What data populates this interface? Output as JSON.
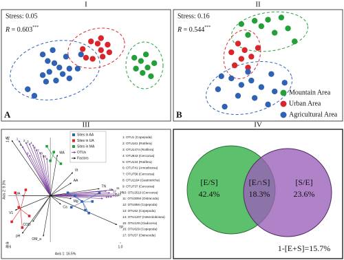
{
  "chart_data": [
    {
      "type": "scatter",
      "title": "I",
      "stress": "Stress: 0.05",
      "r_label": "R",
      "r_value": " = 0.603",
      "r_sig": "***",
      "panel_label": "A",
      "xlim": [
        0,
        100
      ],
      "ylim": [
        0,
        100
      ],
      "series": [
        {
          "color": "#2f62b3",
          "x": [
            24,
            30,
            38,
            40,
            31,
            34,
            36,
            28,
            24,
            26,
            32,
            40,
            45,
            47,
            15,
            19,
            27
          ],
          "y": [
            60,
            64,
            58,
            47,
            52,
            48,
            42,
            44,
            41,
            35,
            36,
            38,
            47,
            60,
            28,
            22,
            54
          ]
        },
        {
          "color": "#d9262b",
          "x": [
            48,
            53,
            57,
            59,
            59,
            60,
            64,
            54,
            50,
            63
          ],
          "y": [
            65,
            72,
            70,
            75,
            64,
            58,
            62,
            56,
            57,
            69
          ]
        },
        {
          "color": "#23a03a",
          "x": [
            79,
            83,
            86,
            87,
            80,
            91,
            89,
            84
          ],
          "y": [
            57,
            54,
            60,
            48,
            47,
            52,
            40,
            43
          ]
        }
      ]
    },
    {
      "type": "scatter",
      "title": "II",
      "stress": "Stress: 0.16",
      "r_label": "R",
      "r_value": " = 0.544",
      "r_sig": "***",
      "panel_label": "B",
      "xlim": [
        0,
        100
      ],
      "ylim": [
        0,
        100
      ],
      "series": [
        {
          "name": "Mountain Area",
          "color": "#23a03a",
          "x": [
            40,
            48,
            56,
            64,
            44,
            60,
            68,
            52,
            72
          ],
          "y": [
            88,
            91,
            92,
            94,
            78,
            80,
            84,
            86,
            72
          ]
        },
        {
          "name": "Urban Area",
          "color": "#d9262b",
          "x": [
            38,
            34,
            42,
            40,
            46,
            36,
            44,
            50
          ],
          "y": [
            70,
            62,
            64,
            56,
            58,
            50,
            48,
            66
          ]
        },
        {
          "name": "Agricultural Area",
          "color": "#2f62b3",
          "x": [
            28,
            34,
            40,
            46,
            52,
            58,
            38,
            48,
            26,
            60,
            66,
            44,
            30,
            56
          ],
          "y": [
            40,
            38,
            32,
            36,
            30,
            42,
            22,
            20,
            28,
            26,
            34,
            44,
            12,
            14
          ]
        }
      ]
    },
    {
      "type": "biplot",
      "title": "III",
      "xlabel": "Axis 1: 16.5%",
      "ylabel": "Axis 2: 9.3%",
      "xlim": [
        -0.6,
        1.0
      ],
      "ylim": [
        -0.8,
        1.0
      ],
      "xticks": [
        -0.6,
        {
          "value": 1.0,
          "label": "1.0"
        }
      ],
      "yticks": [
        -0.8,
        {
          "value": 1.0,
          "label": "1.0"
        }
      ],
      "series": [
        {
          "name": "Sites in AA",
          "color": "#2f62b3",
          "x": [
            0.35,
            0.45,
            0.5,
            0.3,
            0.6,
            0.25,
            0.7,
            0.55
          ],
          "y": [
            0.0,
            -0.1,
            -0.25,
            -0.2,
            -0.1,
            0.05,
            0.05,
            -0.3
          ]
        },
        {
          "name": "Sites in UA",
          "color": "#d9262b",
          "x": [
            -0.5,
            -0.45,
            -0.35,
            -0.3,
            -0.55,
            -0.4
          ],
          "y": [
            0.05,
            -0.2,
            0.1,
            -0.35,
            -0.45,
            -0.55
          ]
        },
        {
          "name": "Sites in MA",
          "color": "#23a03a",
          "x": [
            0.05,
            0.15,
            -0.05,
            0.0
          ],
          "y": [
            0.75,
            0.55,
            0.85,
            0.6
          ]
        }
      ],
      "otus": {
        "name": "OTUs",
        "color": "#7b3f9e",
        "labels": [
          "1",
          "2",
          "3",
          "4",
          "5",
          "6",
          "7",
          "8",
          "9",
          "10",
          "11",
          "12",
          "13",
          "14",
          "15",
          "16",
          "17"
        ],
        "x": [
          -0.45,
          -0.35,
          -0.3,
          -0.25,
          -0.4,
          -0.2,
          -0.15,
          -0.1,
          -0.3,
          -0.05,
          0.9,
          0.85,
          0.88,
          0.92,
          0.8,
          0.95,
          0.75
        ],
        "y": [
          0.95,
          0.92,
          0.9,
          0.88,
          0.85,
          0.8,
          0.75,
          0.7,
          0.7,
          0.65,
          0.1,
          0.05,
          -0.02,
          0.0,
          0.08,
          0.03,
          -0.05
        ]
      },
      "factors": {
        "name": "Factors",
        "color": "#111111",
        "labels": [
          "V2",
          "MA",
          "Vt",
          "AA",
          "TN",
          "Mg",
          "Ca",
          "TP",
          "UA",
          "V1",
          "COD",
          "pH",
          "OM_a"
        ],
        "x": [
          -0.55,
          0.1,
          0.32,
          0.3,
          0.7,
          0.3,
          0.15,
          0.95,
          -0.4,
          -0.5,
          -0.25,
          -0.4,
          -0.1
        ],
        "y": [
          0.95,
          0.7,
          0.4,
          0.22,
          0.12,
          -0.05,
          -0.15,
          -0.5,
          0.0,
          -0.25,
          -0.45,
          -0.65,
          -0.7
        ]
      },
      "otu_list": [
        "1: OTU1 (Copepoda)",
        "2: OTU161 (Rotifera)",
        "3: OTU1474 (Rotifera)",
        "4: OTU843 (Cercozoa)",
        "5: OTU134 (Rotifera)",
        "6: OTU741 (Amoebozoa)",
        "7: OTU758 (Cercozoa)",
        "8: OTU1164 (Gastrotricha)",
        "9: OTU737 (Cercozoa)",
        "10: OTU2519 (Cercozoa)",
        "11: OTU3094 (Ostracoda)",
        "12: OTU856 (Copepoda)",
        "13: OTU62 (Copepoda)",
        "14: OTU1207 (Heterolobosea)",
        "15: OTU129 (Cladocera)",
        "16: OTU629 (Copepoda)",
        "17: OTU57 (Ostracoda)"
      ]
    },
    {
      "type": "venn",
      "title": "IV",
      "regions": {
        "names": [
          "[E/S]",
          "[E∩S]",
          "[S/E]"
        ],
        "values": [
          42.4,
          18.3,
          23.6
        ],
        "value_labels": [
          "42.4%",
          "18.3%",
          "23.6%"
        ]
      },
      "remainder": {
        "label": "1-[E+S]=15.7%",
        "value": 15.7
      }
    }
  ]
}
